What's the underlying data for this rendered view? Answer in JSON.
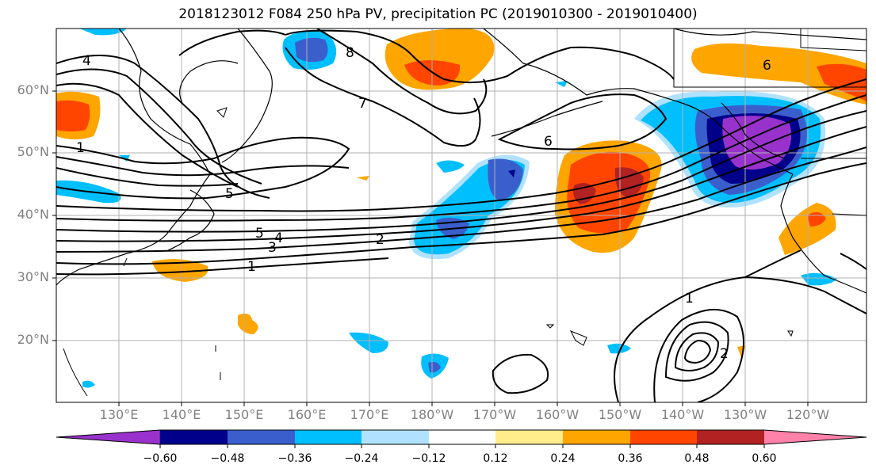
{
  "title": "2018123012 F084 250 hPa PV, precipitation PC (2019010300 - 2019010400)",
  "lat_labels": [
    "60°N",
    "50°N",
    "40°N",
    "30°N",
    "20°N"
  ],
  "lon_labels": [
    "130°E",
    "140°E",
    "150°E",
    "160°E",
    "170°E",
    "180°W",
    "170°W",
    "160°W",
    "150°W",
    "140°W",
    "130°W",
    "120°W"
  ],
  "contour_labels": [
    "4",
    "8",
    "7",
    "6",
    "1",
    "5",
    "6",
    "5",
    "4",
    "3",
    "2",
    "1",
    "1",
    "2"
  ],
  "colorbar": {
    "ticks": [
      "−0.60",
      "−0.48",
      "−0.36",
      "−0.24",
      "−0.12",
      "0.12",
      "0.24",
      "0.36",
      "0.48",
      "0.60"
    ],
    "colors": [
      "#9932cc",
      "#00008b",
      "#3a5fcd",
      "#00bfff",
      "#b0e2ff",
      "#ffffff",
      "#ffec8b",
      "#ffa500",
      "#ff4500",
      "#b22222",
      "#ff82ab"
    ]
  }
}
